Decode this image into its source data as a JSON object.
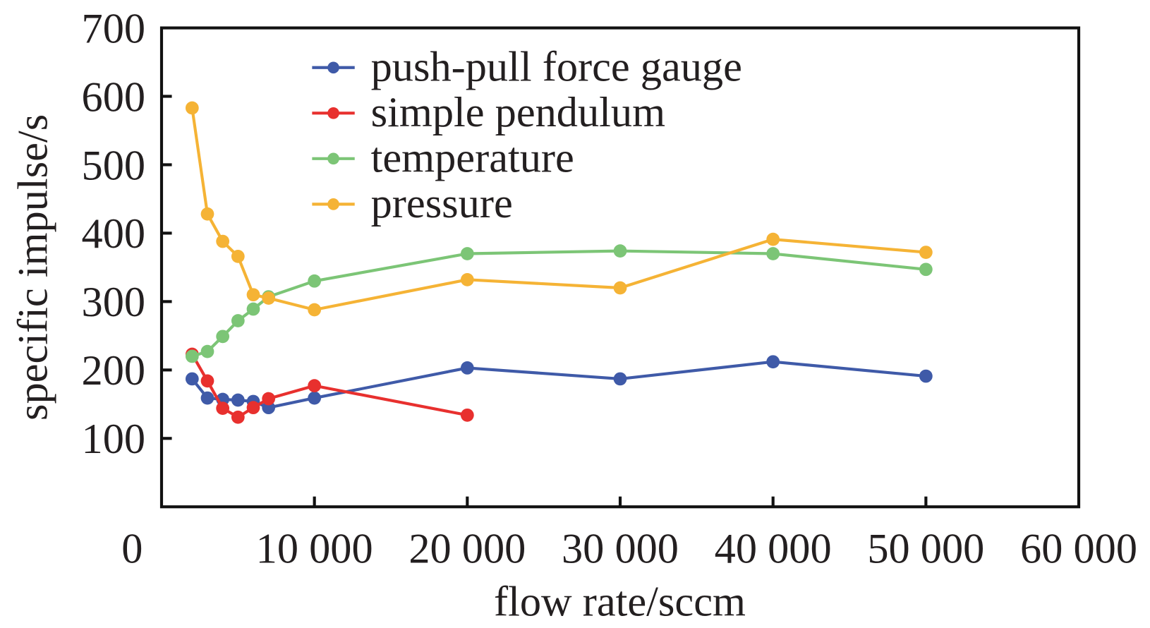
{
  "chart_data": {
    "type": "line",
    "title": "",
    "xlabel": "flow rate/sccm",
    "ylabel": "specific impulse/s",
    "xlim": [
      0,
      60000
    ],
    "ylim": [
      0,
      700
    ],
    "grid": false,
    "legend_position": "top-center",
    "x_ticks": [
      {
        "value": 0,
        "label": "0"
      },
      {
        "value": 10000,
        "label": "10 000"
      },
      {
        "value": 20000,
        "label": "20 000"
      },
      {
        "value": 30000,
        "label": "30 000"
      },
      {
        "value": 40000,
        "label": "40 000"
      },
      {
        "value": 50000,
        "label": "50 000"
      },
      {
        "value": 60000,
        "label": "60 000"
      }
    ],
    "y_ticks": [
      {
        "value": 100,
        "label": "100"
      },
      {
        "value": 200,
        "label": "200"
      },
      {
        "value": 300,
        "label": "300"
      },
      {
        "value": 400,
        "label": "400"
      },
      {
        "value": 500,
        "label": "500"
      },
      {
        "value": 600,
        "label": "600"
      },
      {
        "value": 700,
        "label": "700"
      }
    ],
    "series": [
      {
        "name": "push-pull force gauge",
        "color": "#3f5aa8",
        "x": [
          2000,
          3000,
          4000,
          5000,
          6000,
          7000,
          10000,
          20000,
          30000,
          40000,
          50000
        ],
        "y": [
          187,
          159,
          157,
          156,
          154,
          145,
          159,
          203,
          187,
          212,
          191
        ]
      },
      {
        "name": "simple pendulum",
        "color": "#e8302e",
        "x": [
          2000,
          3000,
          4000,
          5000,
          6000,
          7000,
          10000,
          20000
        ],
        "y": [
          223,
          184,
          144,
          131,
          145,
          158,
          177,
          134
        ]
      },
      {
        "name": "temperature",
        "color": "#7cc576",
        "x": [
          2000,
          3000,
          4000,
          5000,
          6000,
          7000,
          10000,
          20000,
          30000,
          40000,
          50000
        ],
        "y": [
          220,
          227,
          249,
          272,
          289,
          307,
          330,
          370,
          374,
          370,
          347
        ]
      },
      {
        "name": "pressure",
        "color": "#f5b335",
        "x": [
          2000,
          3000,
          4000,
          5000,
          6000,
          7000,
          10000,
          20000,
          30000,
          40000,
          50000
        ],
        "y": [
          583,
          428,
          388,
          366,
          310,
          305,
          288,
          332,
          320,
          391,
          372
        ]
      }
    ]
  }
}
